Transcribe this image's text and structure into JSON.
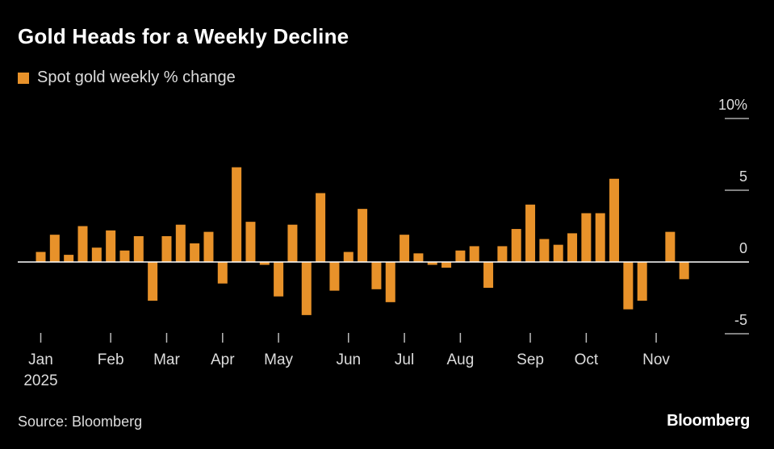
{
  "title": "Gold Heads for a Weekly Decline",
  "legend": {
    "label": "Spot gold weekly % change",
    "color": "#E8922A"
  },
  "source": "Source: Bloomberg",
  "brand": "Bloomberg",
  "colors": {
    "bar": "#E8922A",
    "axis": "#ffffff",
    "tick": "#bbbbbb"
  },
  "chart_data": {
    "type": "bar",
    "title": "Gold Heads for a Weekly Decline",
    "xlabel": "",
    "ylabel": "",
    "ylim": [
      -5,
      10
    ],
    "yticks": [
      {
        "value": 10,
        "label": "10%"
      },
      {
        "value": 5,
        "label": "5"
      },
      {
        "value": 0,
        "label": "0"
      },
      {
        "value": -5,
        "label": "-5"
      }
    ],
    "xticks": [
      {
        "index": 0,
        "label": "Jan",
        "sublabel": "2025"
      },
      {
        "index": 5,
        "label": "Feb",
        "sublabel": ""
      },
      {
        "index": 9,
        "label": "Mar",
        "sublabel": ""
      },
      {
        "index": 13,
        "label": "Apr",
        "sublabel": ""
      },
      {
        "index": 17,
        "label": "May",
        "sublabel": ""
      },
      {
        "index": 22,
        "label": "Jun",
        "sublabel": ""
      },
      {
        "index": 26,
        "label": "Jul",
        "sublabel": ""
      },
      {
        "index": 30,
        "label": "Aug",
        "sublabel": ""
      },
      {
        "index": 35,
        "label": "Sep",
        "sublabel": ""
      },
      {
        "index": 39,
        "label": "Oct",
        "sublabel": ""
      },
      {
        "index": 44,
        "label": "Nov",
        "sublabel": ""
      }
    ],
    "series": [
      {
        "name": "Spot gold weekly % change",
        "values": [
          0.7,
          1.9,
          0.5,
          2.5,
          1.0,
          2.2,
          0.8,
          1.8,
          -2.7,
          1.8,
          2.6,
          1.3,
          2.1,
          -1.5,
          6.6,
          2.8,
          -0.2,
          -2.4,
          2.6,
          -3.7,
          4.8,
          -2.0,
          0.7,
          3.7,
          -1.9,
          -2.8,
          1.9,
          0.6,
          -0.2,
          -0.4,
          0.8,
          1.1,
          -1.8,
          1.1,
          2.3,
          4.0,
          1.6,
          1.2,
          2.0,
          3.4,
          3.4,
          5.8,
          -3.3,
          -2.7,
          0.0,
          2.1,
          -1.2
        ]
      }
    ]
  }
}
